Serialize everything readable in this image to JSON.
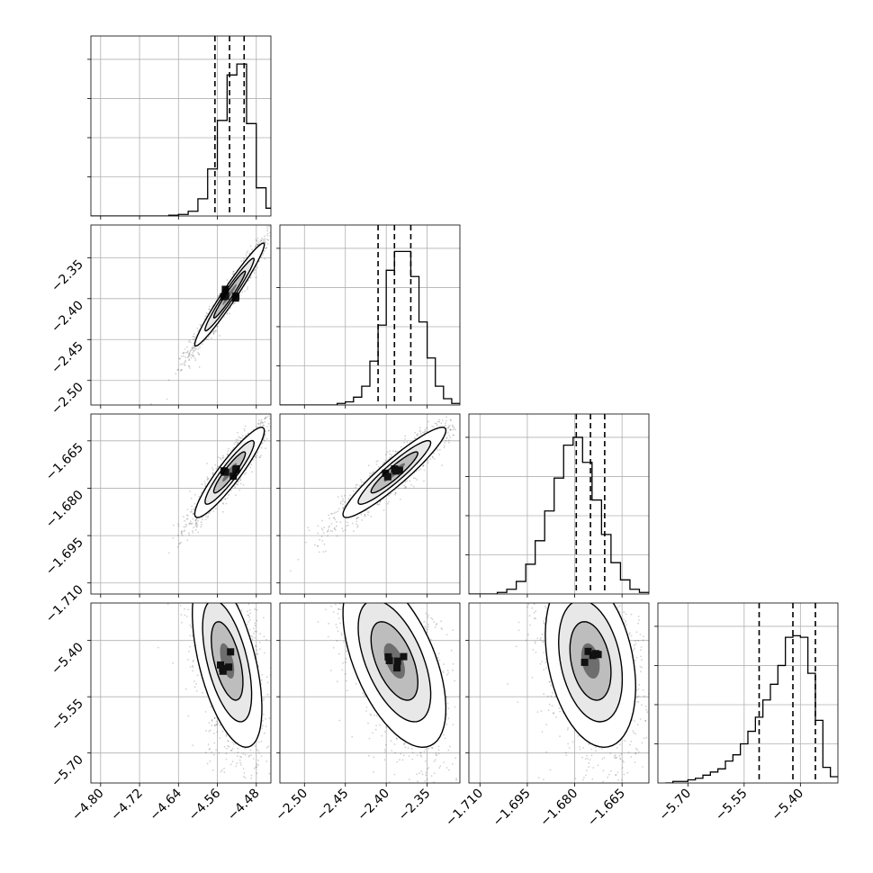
{
  "chart_data": {
    "type": "corner",
    "parameters": [
      {
        "index": 0,
        "range": [
          -4.82,
          -4.45
        ],
        "ticks": [
          -4.8,
          -4.72,
          -4.64,
          -4.56,
          -4.48
        ],
        "tick_labels": [
          "−4.80",
          "−4.72",
          "−4.64",
          "−4.56",
          "−4.48"
        ],
        "median": -4.535,
        "lo": -4.565,
        "hi": -4.505,
        "sigma": 0.025,
        "hist_ymax": 1.0
      },
      {
        "index": 1,
        "range": [
          -2.53,
          -2.31
        ],
        "ticks": [
          -2.5,
          -2.45,
          -2.4,
          -2.35
        ],
        "tick_labels": [
          "−2.50",
          "−2.45",
          "−2.40",
          "−2.35"
        ],
        "median": -2.39,
        "lo": -2.41,
        "hi": -2.37,
        "sigma": 0.022,
        "hist_ymax": 1.0
      },
      {
        "index": 2,
        "range": [
          -1.7135,
          -1.6565
        ],
        "ticks": [
          -1.71,
          -1.695,
          -1.68,
          -1.665
        ],
        "tick_labels": [
          "−1.710",
          "−1.695",
          "−1.680",
          "−1.665"
        ],
        "median": -1.675,
        "lo": -1.6795,
        "hi": -1.6705,
        "sigma": 0.005,
        "hist_ymax": 1.0
      },
      {
        "index": 3,
        "range": [
          -5.78,
          -5.3
        ],
        "ticks": [
          -5.7,
          -5.55,
          -5.4
        ],
        "tick_labels": [
          "−5.70",
          "−5.55",
          "−5.40"
        ],
        "median": -5.42,
        "lo": -5.51,
        "hi": -5.36,
        "sigma": 0.07,
        "hist_ymax": 1.0
      }
    ],
    "histograms": [
      {
        "param": 0,
        "bin_edges": [
          -4.82,
          -4.8,
          -4.78,
          -4.76,
          -4.74,
          -4.72,
          -4.7,
          -4.68,
          -4.66,
          -4.64,
          -4.62,
          -4.6,
          -4.58,
          -4.56,
          -4.54,
          -4.52,
          -4.5,
          -4.48,
          -4.46,
          -4.44
        ],
        "counts": [
          0,
          0,
          0,
          0,
          0,
          0,
          0,
          0,
          0.005,
          0.01,
          0.03,
          0.11,
          0.3,
          0.61,
          0.9,
          0.97,
          0.59,
          0.18,
          0.05
        ]
      },
      {
        "param": 1,
        "bin_edges": [
          -2.53,
          -2.52,
          -2.51,
          -2.5,
          -2.49,
          -2.48,
          -2.47,
          -2.46,
          -2.45,
          -2.44,
          -2.43,
          -2.42,
          -2.41,
          -2.4,
          -2.39,
          -2.38,
          -2.37,
          -2.36,
          -2.35,
          -2.34,
          -2.33,
          -2.32,
          -2.31
        ],
        "counts": [
          0,
          0,
          0,
          0,
          0,
          0,
          0,
          0.01,
          0.02,
          0.05,
          0.12,
          0.28,
          0.51,
          0.86,
          0.98,
          0.98,
          0.82,
          0.53,
          0.3,
          0.12,
          0.04,
          0.01
        ]
      },
      {
        "param": 2,
        "bin_edges": [
          -1.7135,
          -1.7105,
          -1.7075,
          -1.7045,
          -1.7015,
          -1.6985,
          -1.6955,
          -1.6925,
          -1.6895,
          -1.6865,
          -1.6835,
          -1.6805,
          -1.6775,
          -1.6745,
          -1.6715,
          -1.6685,
          -1.6655,
          -1.6625,
          -1.6595,
          -1.6565
        ],
        "counts": [
          0,
          0,
          0,
          0.01,
          0.03,
          0.08,
          0.19,
          0.34,
          0.53,
          0.74,
          0.95,
          1.0,
          0.84,
          0.6,
          0.38,
          0.2,
          0.09,
          0.03,
          0.01
        ]
      },
      {
        "param": 3,
        "bin_edges": [
          -5.76,
          -5.74,
          -5.72,
          -5.7,
          -5.68,
          -5.66,
          -5.64,
          -5.62,
          -5.6,
          -5.58,
          -5.56,
          -5.54,
          -5.52,
          -5.5,
          -5.48,
          -5.46,
          -5.44,
          -5.42,
          -5.4,
          -5.38,
          -5.36,
          -5.34,
          -5.32,
          -5.3
        ],
        "counts": [
          0,
          0.01,
          0.01,
          0.02,
          0.03,
          0.05,
          0.07,
          0.09,
          0.14,
          0.18,
          0.25,
          0.33,
          0.42,
          0.53,
          0.63,
          0.75,
          0.93,
          0.94,
          0.93,
          0.7,
          0.4,
          0.1,
          0.04
        ]
      }
    ],
    "panels_2d": [
      {
        "x_param": 0,
        "y_param": 1,
        "center": [
          -4.535,
          -2.395
        ],
        "correlation": 0.97
      },
      {
        "x_param": 0,
        "y_param": 2,
        "center": [
          -4.535,
          -1.675
        ],
        "correlation": 0.92
      },
      {
        "x_param": 1,
        "y_param": 2,
        "center": [
          -2.39,
          -1.675
        ],
        "correlation": 0.93
      },
      {
        "x_param": 0,
        "y_param": 3,
        "center": [
          -4.54,
          -5.43
        ],
        "correlation": -0.55
      },
      {
        "x_param": 1,
        "y_param": 3,
        "center": [
          -2.39,
          -5.43
        ],
        "correlation": -0.55
      },
      {
        "x_param": 2,
        "y_param": 3,
        "center": [
          -1.675,
          -5.43
        ],
        "correlation": -0.3
      }
    ],
    "grid": true,
    "quantile_lines": "dashed",
    "legend": "none"
  }
}
